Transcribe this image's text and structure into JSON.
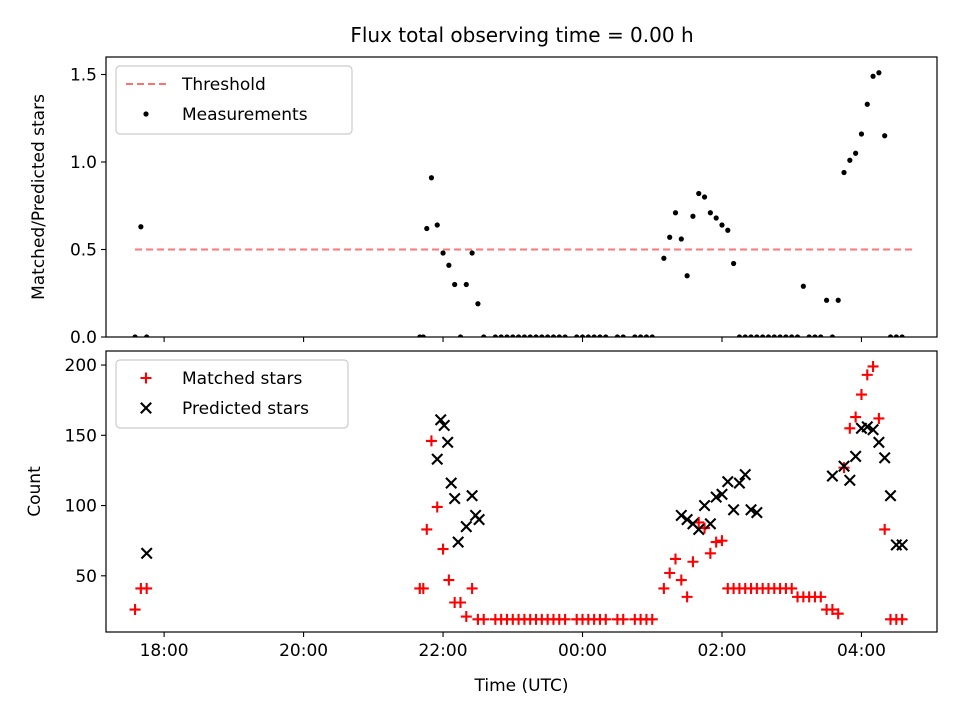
{
  "figure": {
    "title": "Flux total observing time = 0.00 h"
  },
  "chart_data": [
    {
      "type": "scatter",
      "ylabel": "Matched/Predicted stars",
      "xlabel": "",
      "x_axis_type": "time",
      "xlim": [
        "17:10",
        "05:05"
      ],
      "ylim": [
        0,
        1.6
      ],
      "yticks": [
        0.0,
        0.5,
        1.0,
        1.5
      ],
      "ytick_labels": [
        "0.0",
        "0.5",
        "1.0",
        "1.5"
      ],
      "grid": false,
      "legend_position": "upper left",
      "legend": [
        {
          "label": "Threshold",
          "marker": "dashed-line",
          "color": "#ff7070"
        },
        {
          "label": "Measurements",
          "marker": "dot",
          "color": "#000000"
        }
      ],
      "threshold": {
        "name": "Threshold",
        "value": 0.5,
        "x_start": "17:35",
        "x_end": "04:45",
        "style": "dashed",
        "color": "#ff7070"
      },
      "series": [
        {
          "name": "Measurements",
          "marker": "dot",
          "color": "#000000",
          "x": [
            "17:35",
            "17:40",
            "17:45",
            "21:40",
            "21:43",
            "21:46",
            "21:50",
            "21:55",
            "22:00",
            "22:05",
            "22:10",
            "22:15",
            "22:20",
            "22:25",
            "22:30",
            "22:35",
            "22:45",
            "22:50",
            "22:55",
            "23:00",
            "23:05",
            "23:10",
            "23:15",
            "23:20",
            "23:25",
            "23:30",
            "23:35",
            "23:40",
            "23:45",
            "23:55",
            "00:00",
            "00:05",
            "00:10",
            "00:15",
            "00:20",
            "00:30",
            "00:35",
            "00:45",
            "00:50",
            "00:55",
            "01:00",
            "01:10",
            "01:15",
            "01:20",
            "01:25",
            "01:30",
            "01:35",
            "01:40",
            "01:45",
            "01:50",
            "01:55",
            "02:00",
            "02:05",
            "02:10",
            "02:15",
            "02:20",
            "02:25",
            "02:30",
            "02:35",
            "02:40",
            "02:45",
            "02:50",
            "02:55",
            "03:00",
            "03:05",
            "03:10",
            "03:15",
            "03:20",
            "03:25",
            "03:30",
            "03:35",
            "03:40",
            "03:45",
            "03:50",
            "03:55",
            "04:00",
            "04:05",
            "04:10",
            "04:15",
            "04:20",
            "04:25",
            "04:30",
            "04:35"
          ],
          "y": [
            0.0,
            0.63,
            0.0,
            0.0,
            0.0,
            0.62,
            0.91,
            0.64,
            0.48,
            0.41,
            0.3,
            0.0,
            0.3,
            0.48,
            0.19,
            0.0,
            0.0,
            0.0,
            0.0,
            0.0,
            0.0,
            0.0,
            0.0,
            0.0,
            0.0,
            0.0,
            0.0,
            0.0,
            0.0,
            0.0,
            0.0,
            0.0,
            0.0,
            0.0,
            0.0,
            0.0,
            0.0,
            0.0,
            0.0,
            0.0,
            0.0,
            0.45,
            0.57,
            0.71,
            0.56,
            0.35,
            0.69,
            0.82,
            0.8,
            0.71,
            0.68,
            0.64,
            0.61,
            0.42,
            0.0,
            0.0,
            0.0,
            0.0,
            0.0,
            0.0,
            0.0,
            0.0,
            0.0,
            0.0,
            0.0,
            0.29,
            0.0,
            0.0,
            0.0,
            0.21,
            0.0,
            0.21,
            0.94,
            1.01,
            1.05,
            1.16,
            1.33,
            1.49,
            1.51,
            1.15,
            0.0,
            0.0,
            0.0
          ]
        }
      ]
    },
    {
      "type": "scatter",
      "ylabel": "Count",
      "xlabel": "Time (UTC)",
      "x_axis_type": "time",
      "xlim": [
        "17:10",
        "05:05"
      ],
      "ylim": [
        10,
        210
      ],
      "yticks": [
        50,
        100,
        150,
        200
      ],
      "ytick_labels": [
        "50",
        "100",
        "150",
        "200"
      ],
      "xticks": [
        "18:00",
        "20:00",
        "22:00",
        "00:00",
        "02:00",
        "04:00"
      ],
      "xtick_labels": [
        "18:00",
        "20:00",
        "22:00",
        "00:00",
        "02:00",
        "04:00"
      ],
      "grid": false,
      "legend_position": "upper left",
      "legend": [
        {
          "label": "Matched stars",
          "marker": "plus",
          "color": "#ff0000"
        },
        {
          "label": "Predicted stars",
          "marker": "cross",
          "color": "#000000"
        }
      ],
      "series": [
        {
          "name": "Matched stars",
          "marker": "plus",
          "color": "#ff0000",
          "x": [
            "17:35",
            "17:40",
            "17:45",
            "21:40",
            "21:43",
            "21:46",
            "21:50",
            "21:55",
            "22:00",
            "22:05",
            "22:10",
            "22:15",
            "22:20",
            "22:25",
            "22:30",
            "22:35",
            "22:45",
            "22:50",
            "22:55",
            "23:00",
            "23:05",
            "23:10",
            "23:15",
            "23:20",
            "23:25",
            "23:30",
            "23:35",
            "23:40",
            "23:45",
            "23:55",
            "00:00",
            "00:05",
            "00:10",
            "00:15",
            "00:20",
            "00:30",
            "00:35",
            "00:45",
            "00:50",
            "00:55",
            "01:00",
            "01:10",
            "01:15",
            "01:20",
            "01:25",
            "01:30",
            "01:35",
            "01:40",
            "01:45",
            "01:50",
            "01:55",
            "02:00",
            "02:05",
            "02:10",
            "02:15",
            "02:20",
            "02:25",
            "02:30",
            "02:35",
            "02:40",
            "02:45",
            "02:50",
            "02:55",
            "03:00",
            "03:05",
            "03:10",
            "03:15",
            "03:20",
            "03:25",
            "03:30",
            "03:35",
            "03:40",
            "03:45",
            "03:50",
            "03:55",
            "04:00",
            "04:05",
            "04:10",
            "04:15",
            "04:20",
            "04:25",
            "04:30",
            "04:35"
          ],
          "y": [
            26,
            41,
            41,
            41,
            41,
            83,
            146,
            99,
            69,
            47,
            31,
            31,
            21,
            41,
            19,
            19,
            19,
            19,
            19,
            19,
            19,
            19,
            19,
            19,
            19,
            19,
            19,
            19,
            19,
            19,
            19,
            19,
            19,
            19,
            19,
            19,
            19,
            19,
            19,
            19,
            19,
            41,
            52,
            62,
            47,
            35,
            60,
            88,
            84,
            66,
            74,
            75,
            41,
            41,
            41,
            41,
            41,
            41,
            41,
            41,
            41,
            41,
            41,
            41,
            35,
            35,
            35,
            35,
            35,
            26,
            26,
            23,
            127,
            155,
            163,
            179,
            193,
            199,
            162,
            83,
            19,
            19,
            19
          ]
        },
        {
          "name": "Predicted stars",
          "marker": "cross",
          "color": "#000000",
          "x": [
            "17:45",
            "21:55",
            "21:58",
            "22:01",
            "22:04",
            "22:07",
            "22:10",
            "22:13",
            "22:20",
            "22:25",
            "22:28",
            "22:31",
            "01:25",
            "01:30",
            "01:35",
            "01:40",
            "01:45",
            "01:50",
            "01:55",
            "02:00",
            "02:05",
            "02:10",
            "02:15",
            "02:20",
            "02:25",
            "02:30",
            "03:35",
            "03:45",
            "03:50",
            "03:55",
            "04:00",
            "04:05",
            "04:10",
            "04:15",
            "04:20",
            "04:25",
            "04:30",
            "04:35"
          ],
          "y": [
            66,
            133,
            161,
            157,
            145,
            116,
            105,
            74,
            85,
            107,
            93,
            90,
            93,
            90,
            87,
            83,
            100,
            87,
            106,
            108,
            117,
            97,
            116,
            122,
            97,
            95,
            121,
            128,
            118,
            135,
            155,
            156,
            154,
            145,
            134,
            107,
            72,
            72
          ]
        }
      ]
    }
  ]
}
